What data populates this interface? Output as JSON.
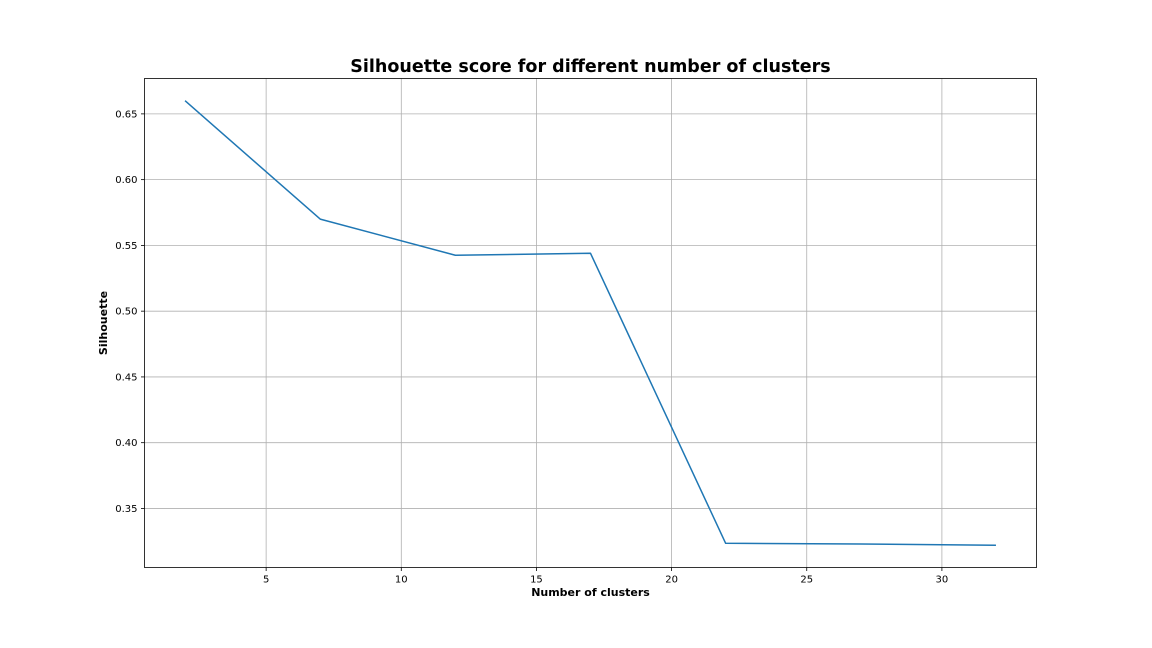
{
  "chart_data": {
    "type": "line",
    "title": "Silhouette score for different number of clusters",
    "xlabel": "Number of clusters",
    "ylabel": "Silhouette",
    "x": [
      2,
      7,
      12,
      17,
      22,
      27,
      32
    ],
    "series": [
      {
        "values": [
          0.66,
          0.57,
          0.5425,
          0.544,
          0.3235,
          0.323,
          0.322
        ],
        "color": "#1f77b4"
      }
    ],
    "xticks": [
      5,
      10,
      15,
      20,
      25,
      30
    ],
    "xtick_labels": [
      "5",
      "10",
      "15",
      "20",
      "25",
      "30"
    ],
    "yticks": [
      0.35,
      0.4,
      0.45,
      0.5,
      0.55,
      0.6,
      0.65
    ],
    "ytick_labels": [
      "0.35",
      "0.40",
      "0.45",
      "0.50",
      "0.55",
      "0.60",
      "0.65"
    ],
    "xlim": [
      0.5,
      33.5
    ],
    "ylim": [
      0.3051,
      0.6769
    ],
    "grid": true,
    "legend": false
  }
}
